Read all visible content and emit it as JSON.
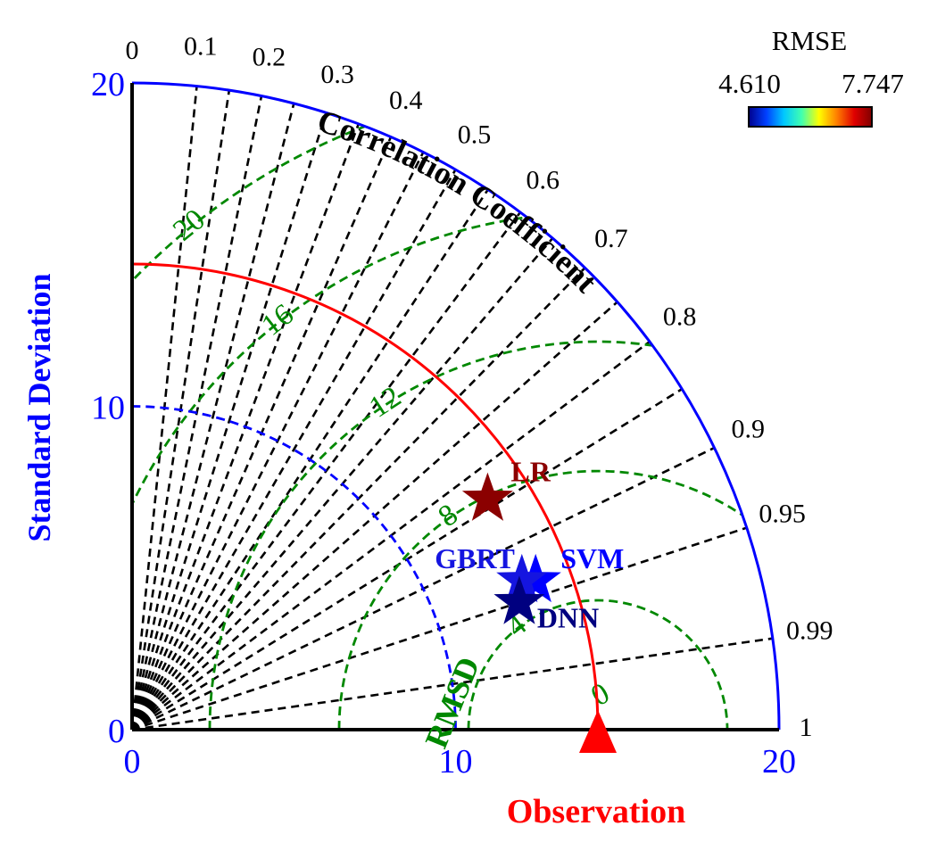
{
  "chart_data": {
    "type": "taylor",
    "xlabel": "Observation",
    "ylabel": "Standard Deviation",
    "arc_label": "Correlation Coefficient",
    "rmsd_label": "RMSD",
    "std_range": [
      0,
      20
    ],
    "std_ticks": [
      {
        "value": 0,
        "label": "0"
      },
      {
        "value": 10,
        "label": "10"
      },
      {
        "value": 20,
        "label": "20"
      }
    ],
    "correlation_ticks": [
      {
        "value": 0,
        "label": "0"
      },
      {
        "value": 0.1,
        "label": "0.1"
      },
      {
        "value": 0.2,
        "label": "0.2"
      },
      {
        "value": 0.3,
        "label": "0.3"
      },
      {
        "value": 0.4,
        "label": "0.4"
      },
      {
        "value": 0.5,
        "label": "0.5"
      },
      {
        "value": 0.6,
        "label": "0.6"
      },
      {
        "value": 0.7,
        "label": "0.7"
      },
      {
        "value": 0.8,
        "label": "0.8"
      },
      {
        "value": 0.9,
        "label": "0.9"
      },
      {
        "value": 0.95,
        "label": "0.95"
      },
      {
        "value": 0.99,
        "label": "0.99"
      },
      {
        "value": 1,
        "label": "1"
      }
    ],
    "extra_radial_lines": [
      0.15,
      0.25,
      0.35,
      0.45,
      0.55,
      0.65,
      0.75,
      0.85
    ],
    "observation": {
      "std": 14.4,
      "label": "0"
    },
    "reference_std_arc": 10,
    "rmsd_contours": [
      {
        "value": 4,
        "label": "4"
      },
      {
        "value": 8,
        "label": "8"
      },
      {
        "value": 12,
        "label": "12"
      },
      {
        "value": 16,
        "label": "16"
      },
      {
        "value": 20,
        "label": "20"
      }
    ],
    "points": [
      {
        "name": "LR",
        "std": 13.1,
        "corr": 0.839,
        "color": "#8b0000"
      },
      {
        "name": "SVM",
        "std": 13.3,
        "corr": 0.938,
        "color": "#0000ff"
      },
      {
        "name": "GBRT",
        "std": 12.9,
        "corr": 0.934,
        "color": "#1515e0"
      },
      {
        "name": "DNN",
        "std": 12.6,
        "corr": 0.95,
        "color": "#000080"
      }
    ],
    "colorbar": {
      "title": "RMSE",
      "min_label": "4.610",
      "max_label": "7.747",
      "colors": [
        "#00008b",
        "#0040ff",
        "#00c8ff",
        "#40ffb0",
        "#ffff00",
        "#ff8000",
        "#e00000",
        "#800000"
      ]
    },
    "colors": {
      "outer_arc": "#0000ff",
      "obs_arc": "#ff0000",
      "ref_arc": "#0000ff",
      "radial": "#000000",
      "rmsd": "#008800",
      "axis_text": "#0000ff",
      "obs_marker": "#ff0000"
    }
  }
}
